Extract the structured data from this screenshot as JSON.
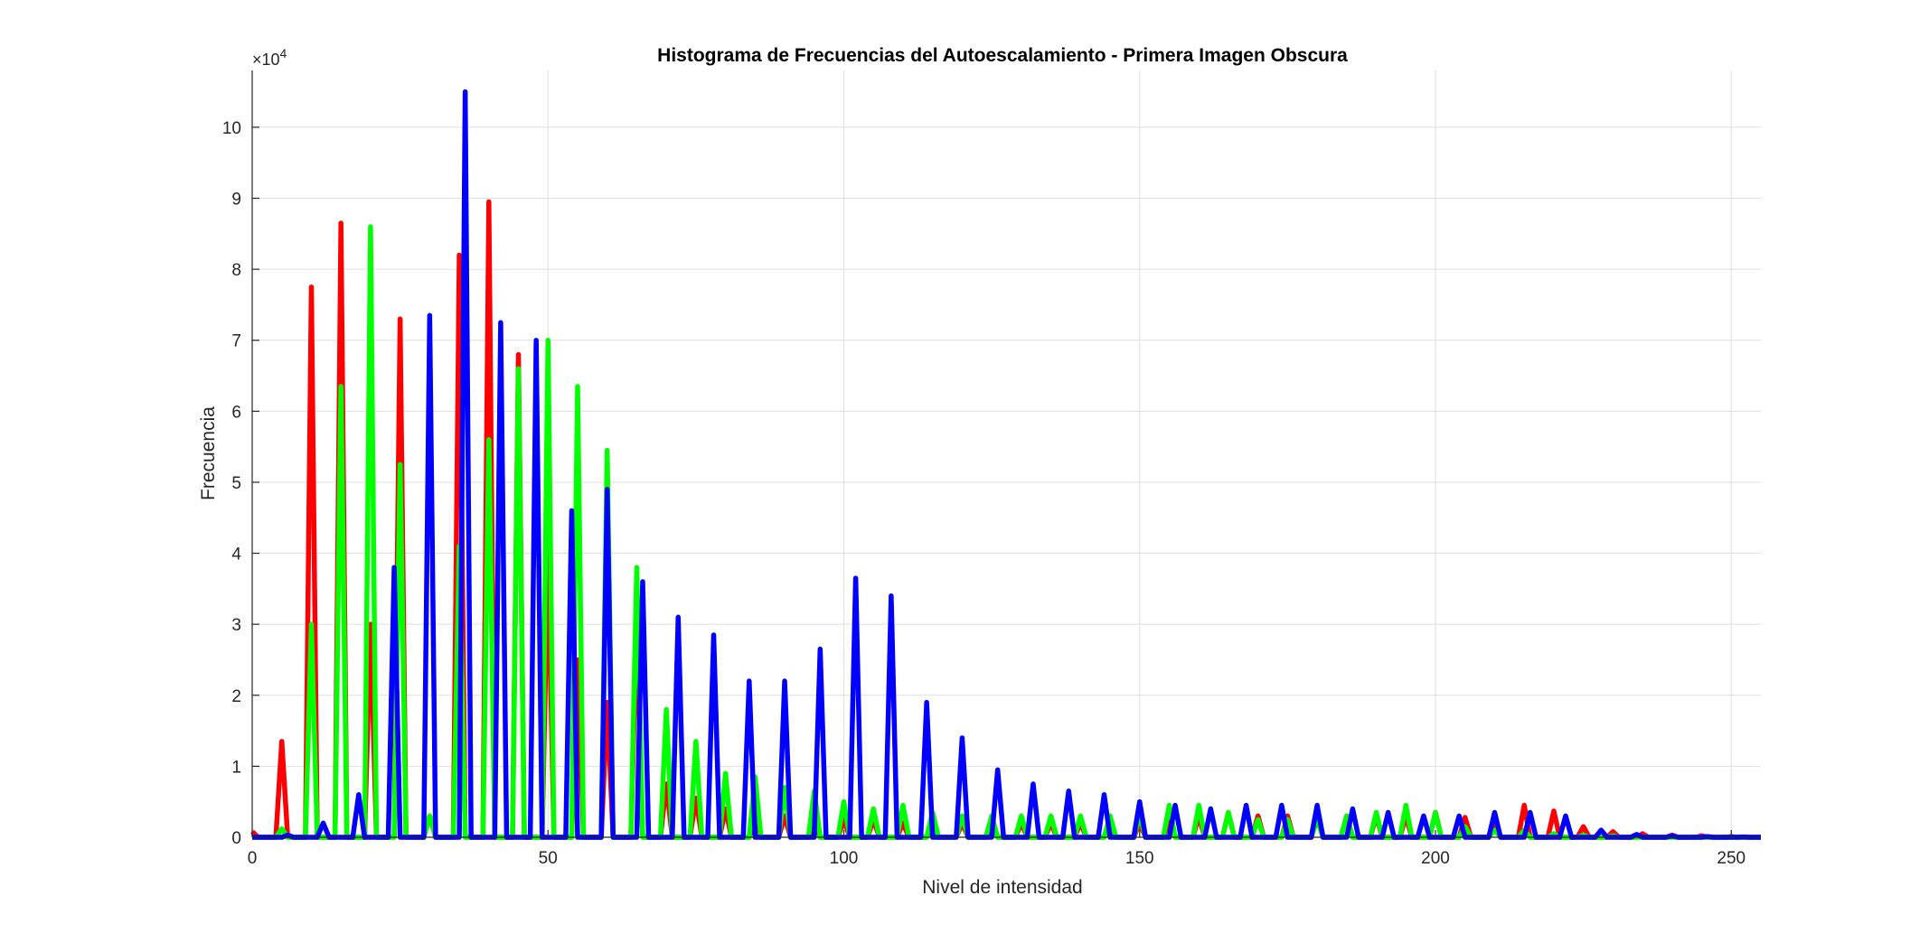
{
  "chart_data": {
    "type": "line",
    "title": "Histograma de Frecuencias del Autoescalamiento - Primera Imagen Obscura",
    "xlabel": "Nivel de intensidad",
    "ylabel": "Frecuencia",
    "y_exponent_label": "×10",
    "y_exponent_power": "4",
    "xlim": [
      0,
      255
    ],
    "ylim": [
      0,
      108000
    ],
    "y_scale": 10000,
    "xticks": [
      0,
      50,
      100,
      150,
      200,
      250
    ],
    "yticks": [
      0,
      10000,
      20000,
      30000,
      40000,
      50000,
      60000,
      70000,
      80000,
      90000,
      100000
    ],
    "ytick_labels": [
      "0",
      "1",
      "2",
      "3",
      "4",
      "5",
      "6",
      "7",
      "8",
      "9",
      "10"
    ],
    "grid": true,
    "series": [
      {
        "color": "#ff0000",
        "peaks": [
          [
            0,
            800
          ],
          [
            5,
            13500
          ],
          [
            10,
            77500
          ],
          [
            15,
            86500
          ],
          [
            20,
            30000
          ],
          [
            25,
            73000
          ],
          [
            30,
            3000
          ],
          [
            35,
            82000
          ],
          [
            40,
            89500
          ],
          [
            45,
            68000
          ],
          [
            50,
            40000
          ],
          [
            55,
            25000
          ],
          [
            60,
            19000
          ],
          [
            65,
            30000
          ],
          [
            70,
            7500
          ],
          [
            75,
            5500
          ],
          [
            80,
            4000
          ],
          [
            85,
            3000
          ],
          [
            90,
            3000
          ],
          [
            95,
            2500
          ],
          [
            100,
            2500
          ],
          [
            105,
            2500
          ],
          [
            110,
            2000
          ],
          [
            115,
            2000
          ],
          [
            120,
            2000
          ],
          [
            125,
            2000
          ],
          [
            130,
            2000
          ],
          [
            135,
            2000
          ],
          [
            140,
            2000
          ],
          [
            145,
            2000
          ],
          [
            150,
            2000
          ],
          [
            155,
            2500
          ],
          [
            160,
            3000
          ],
          [
            165,
            3500
          ],
          [
            170,
            3000
          ],
          [
            175,
            3000
          ],
          [
            180,
            3000
          ],
          [
            185,
            3000
          ],
          [
            190,
            3000
          ],
          [
            195,
            3000
          ],
          [
            200,
            3500
          ],
          [
            205,
            2800
          ],
          [
            210,
            2000
          ],
          [
            215,
            4500
          ],
          [
            220,
            3700
          ],
          [
            225,
            1500
          ],
          [
            230,
            800
          ],
          [
            235,
            500
          ],
          [
            240,
            300
          ],
          [
            245,
            200
          ],
          [
            250,
            100
          ]
        ]
      },
      {
        "color": "#00ff00",
        "peaks": [
          [
            5,
            1200
          ],
          [
            10,
            30000
          ],
          [
            15,
            63500
          ],
          [
            20,
            86000
          ],
          [
            25,
            52500
          ],
          [
            30,
            3000
          ],
          [
            35,
            41000
          ],
          [
            40,
            56000
          ],
          [
            45,
            66000
          ],
          [
            50,
            70000
          ],
          [
            55,
            63500
          ],
          [
            60,
            54500
          ],
          [
            65,
            38000
          ],
          [
            70,
            18000
          ],
          [
            75,
            13500
          ],
          [
            80,
            9000
          ],
          [
            85,
            8500
          ],
          [
            90,
            7000
          ],
          [
            95,
            6500
          ],
          [
            100,
            5000
          ],
          [
            105,
            4000
          ],
          [
            110,
            4500
          ],
          [
            115,
            3500
          ],
          [
            120,
            3000
          ],
          [
            125,
            3000
          ],
          [
            130,
            3000
          ],
          [
            135,
            3000
          ],
          [
            140,
            3000
          ],
          [
            145,
            3000
          ],
          [
            150,
            3000
          ],
          [
            155,
            4500
          ],
          [
            160,
            4500
          ],
          [
            165,
            3500
          ],
          [
            170,
            2500
          ],
          [
            175,
            2500
          ],
          [
            180,
            2500
          ],
          [
            185,
            3000
          ],
          [
            190,
            3500
          ],
          [
            195,
            4500
          ],
          [
            200,
            3500
          ],
          [
            205,
            1500
          ],
          [
            210,
            1000
          ],
          [
            215,
            1000
          ],
          [
            220,
            500
          ],
          [
            225,
            300
          ],
          [
            230,
            200
          ]
        ]
      },
      {
        "color": "#0000ff",
        "peaks": [
          [
            6,
            300
          ],
          [
            12,
            2000
          ],
          [
            18,
            6000
          ],
          [
            24,
            38000
          ],
          [
            30,
            73500
          ],
          [
            36,
            105000
          ],
          [
            42,
            72500
          ],
          [
            48,
            70000
          ],
          [
            54,
            46000
          ],
          [
            60,
            49000
          ],
          [
            66,
            36000
          ],
          [
            72,
            31000
          ],
          [
            78,
            28500
          ],
          [
            84,
            22000
          ],
          [
            90,
            22000
          ],
          [
            96,
            26500
          ],
          [
            102,
            36500
          ],
          [
            108,
            34000
          ],
          [
            114,
            19000
          ],
          [
            120,
            14000
          ],
          [
            126,
            9500
          ],
          [
            132,
            7500
          ],
          [
            138,
            6500
          ],
          [
            144,
            6000
          ],
          [
            150,
            5000
          ],
          [
            156,
            4500
          ],
          [
            162,
            4000
          ],
          [
            168,
            4500
          ],
          [
            174,
            4500
          ],
          [
            180,
            4500
          ],
          [
            186,
            4000
          ],
          [
            192,
            3500
          ],
          [
            198,
            3000
          ],
          [
            204,
            3000
          ],
          [
            210,
            3500
          ],
          [
            216,
            3500
          ],
          [
            222,
            3000
          ],
          [
            228,
            1000
          ],
          [
            234,
            400
          ],
          [
            240,
            200
          ],
          [
            246,
            100
          ],
          [
            252,
            50
          ]
        ]
      }
    ]
  }
}
